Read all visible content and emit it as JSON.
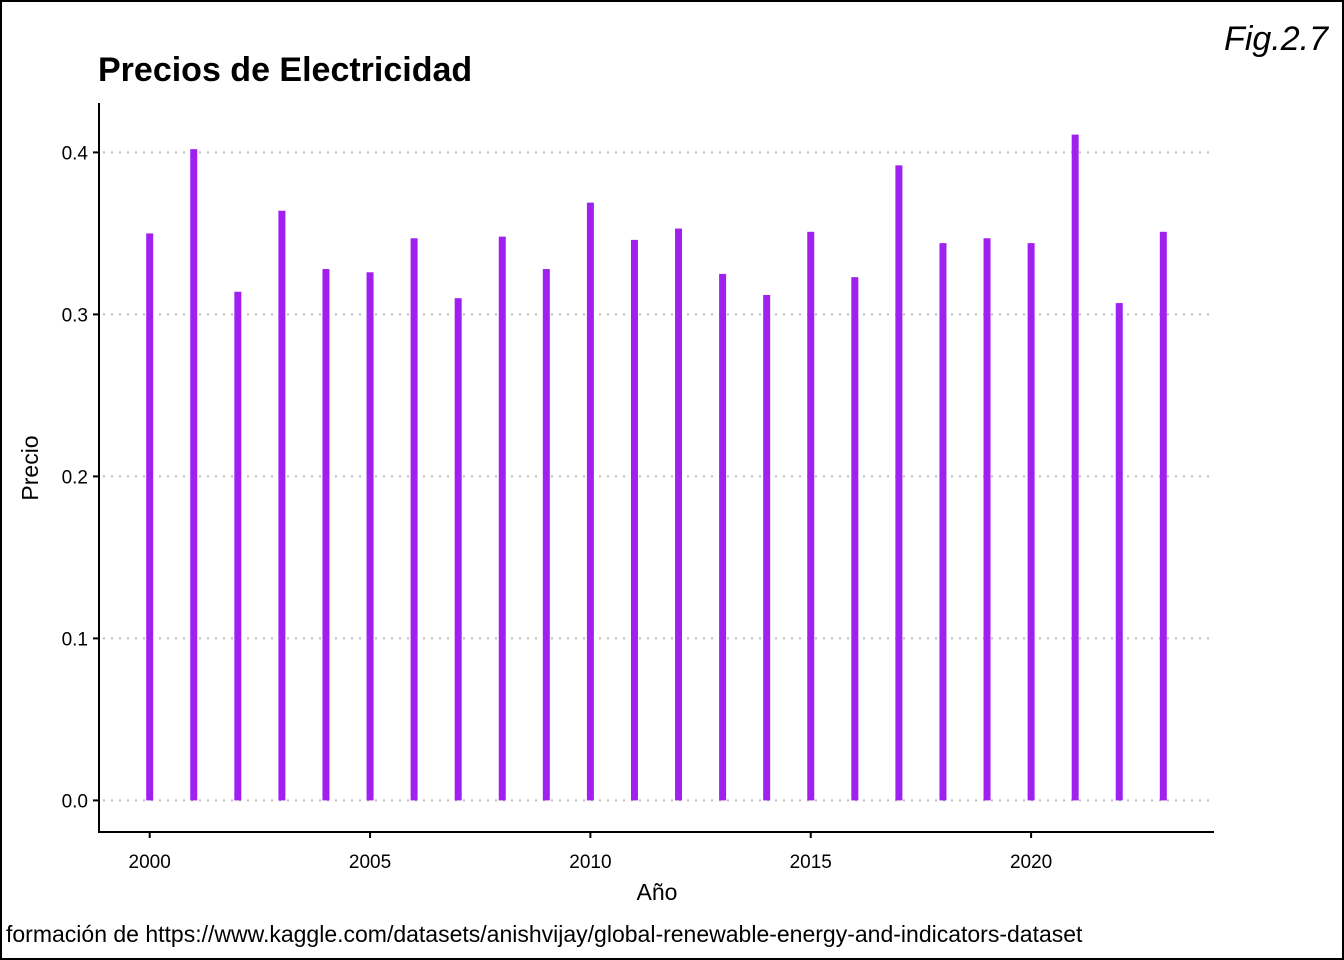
{
  "figure_label": "Fig.2.7",
  "caption": "formación de https://www.kaggle.com/datasets/anishvijay/global-renewable-energy-and-indicators-dataset",
  "chart_data": {
    "type": "bar",
    "title": "Precios de Electricidad",
    "xlabel": "Año",
    "ylabel": "Precio",
    "x": [
      2000,
      2001,
      2002,
      2003,
      2004,
      2005,
      2006,
      2007,
      2008,
      2009,
      2010,
      2011,
      2012,
      2013,
      2014,
      2015,
      2016,
      2017,
      2018,
      2019,
      2020,
      2021,
      2022,
      2023
    ],
    "values": [
      0.35,
      0.402,
      0.314,
      0.364,
      0.328,
      0.326,
      0.347,
      0.31,
      0.348,
      0.328,
      0.369,
      0.346,
      0.353,
      0.325,
      0.312,
      0.351,
      0.323,
      0.392,
      0.344,
      0.347,
      0.344,
      0.411,
      0.307,
      0.351
    ],
    "xticks": [
      2000,
      2005,
      2010,
      2015,
      2020
    ],
    "yticks": [
      0.0,
      0.1,
      0.2,
      0.3,
      0.4
    ],
    "ytick_labels": [
      "0.0",
      "0.1",
      "0.2",
      "0.3",
      "0.4"
    ],
    "xlim": [
      1998.85,
      2024.15
    ],
    "ylim": [
      -0.0195,
      0.4305
    ],
    "bar_color": "#a020f0",
    "grid": "horizontal dotted",
    "legend": "none"
  }
}
